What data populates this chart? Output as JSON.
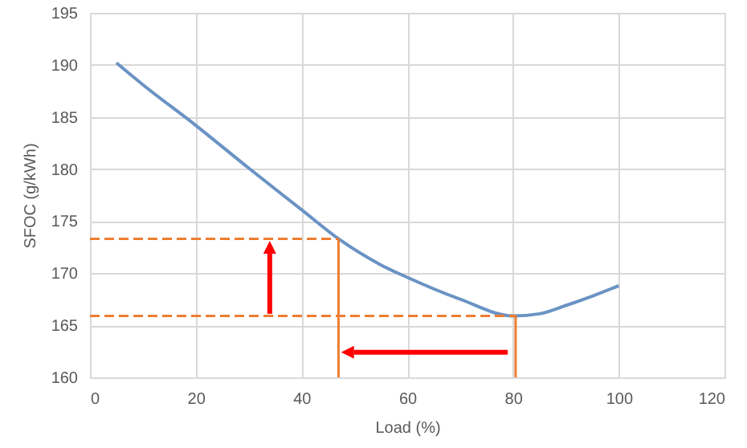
{
  "chart_data": {
    "type": "line",
    "xlabel": "Load (%)",
    "ylabel": "SFOC (g/kWh)",
    "xlim": [
      0,
      120
    ],
    "xticks": [
      0,
      20,
      40,
      60,
      80,
      100,
      120
    ],
    "ylim": [
      160,
      195
    ],
    "yticks": [
      160,
      165,
      170,
      175,
      180,
      185,
      190,
      195
    ],
    "grid": true,
    "series": [
      {
        "color": "#6a93c4",
        "x": [
          5,
          10,
          20,
          30,
          40,
          47,
          55,
          60,
          70,
          80,
          85,
          90,
          95,
          100
        ],
        "values": [
          190.2,
          188.1,
          184.2,
          180.1,
          176.1,
          173.3,
          170.8,
          169.6,
          167.5,
          165.9,
          166.1,
          166.9,
          167.8,
          168.8
        ]
      },
      {
        "color": "#ed7d31",
        "line_style": "dashed",
        "x": [
          0,
          47
        ],
        "values": [
          173.3,
          173.3
        ]
      },
      {
        "color": "#ed7d31",
        "line_style": "dashed",
        "x": [
          0,
          80.5
        ],
        "values": [
          165.9,
          165.9
        ]
      },
      {
        "color": "#ed7d31",
        "x": [
          47,
          47
        ],
        "values": [
          160,
          173.3
        ]
      },
      {
        "color": "#ed7d31",
        "x": [
          80.5,
          80.5
        ],
        "values": [
          160,
          165.9
        ]
      }
    ]
  }
}
